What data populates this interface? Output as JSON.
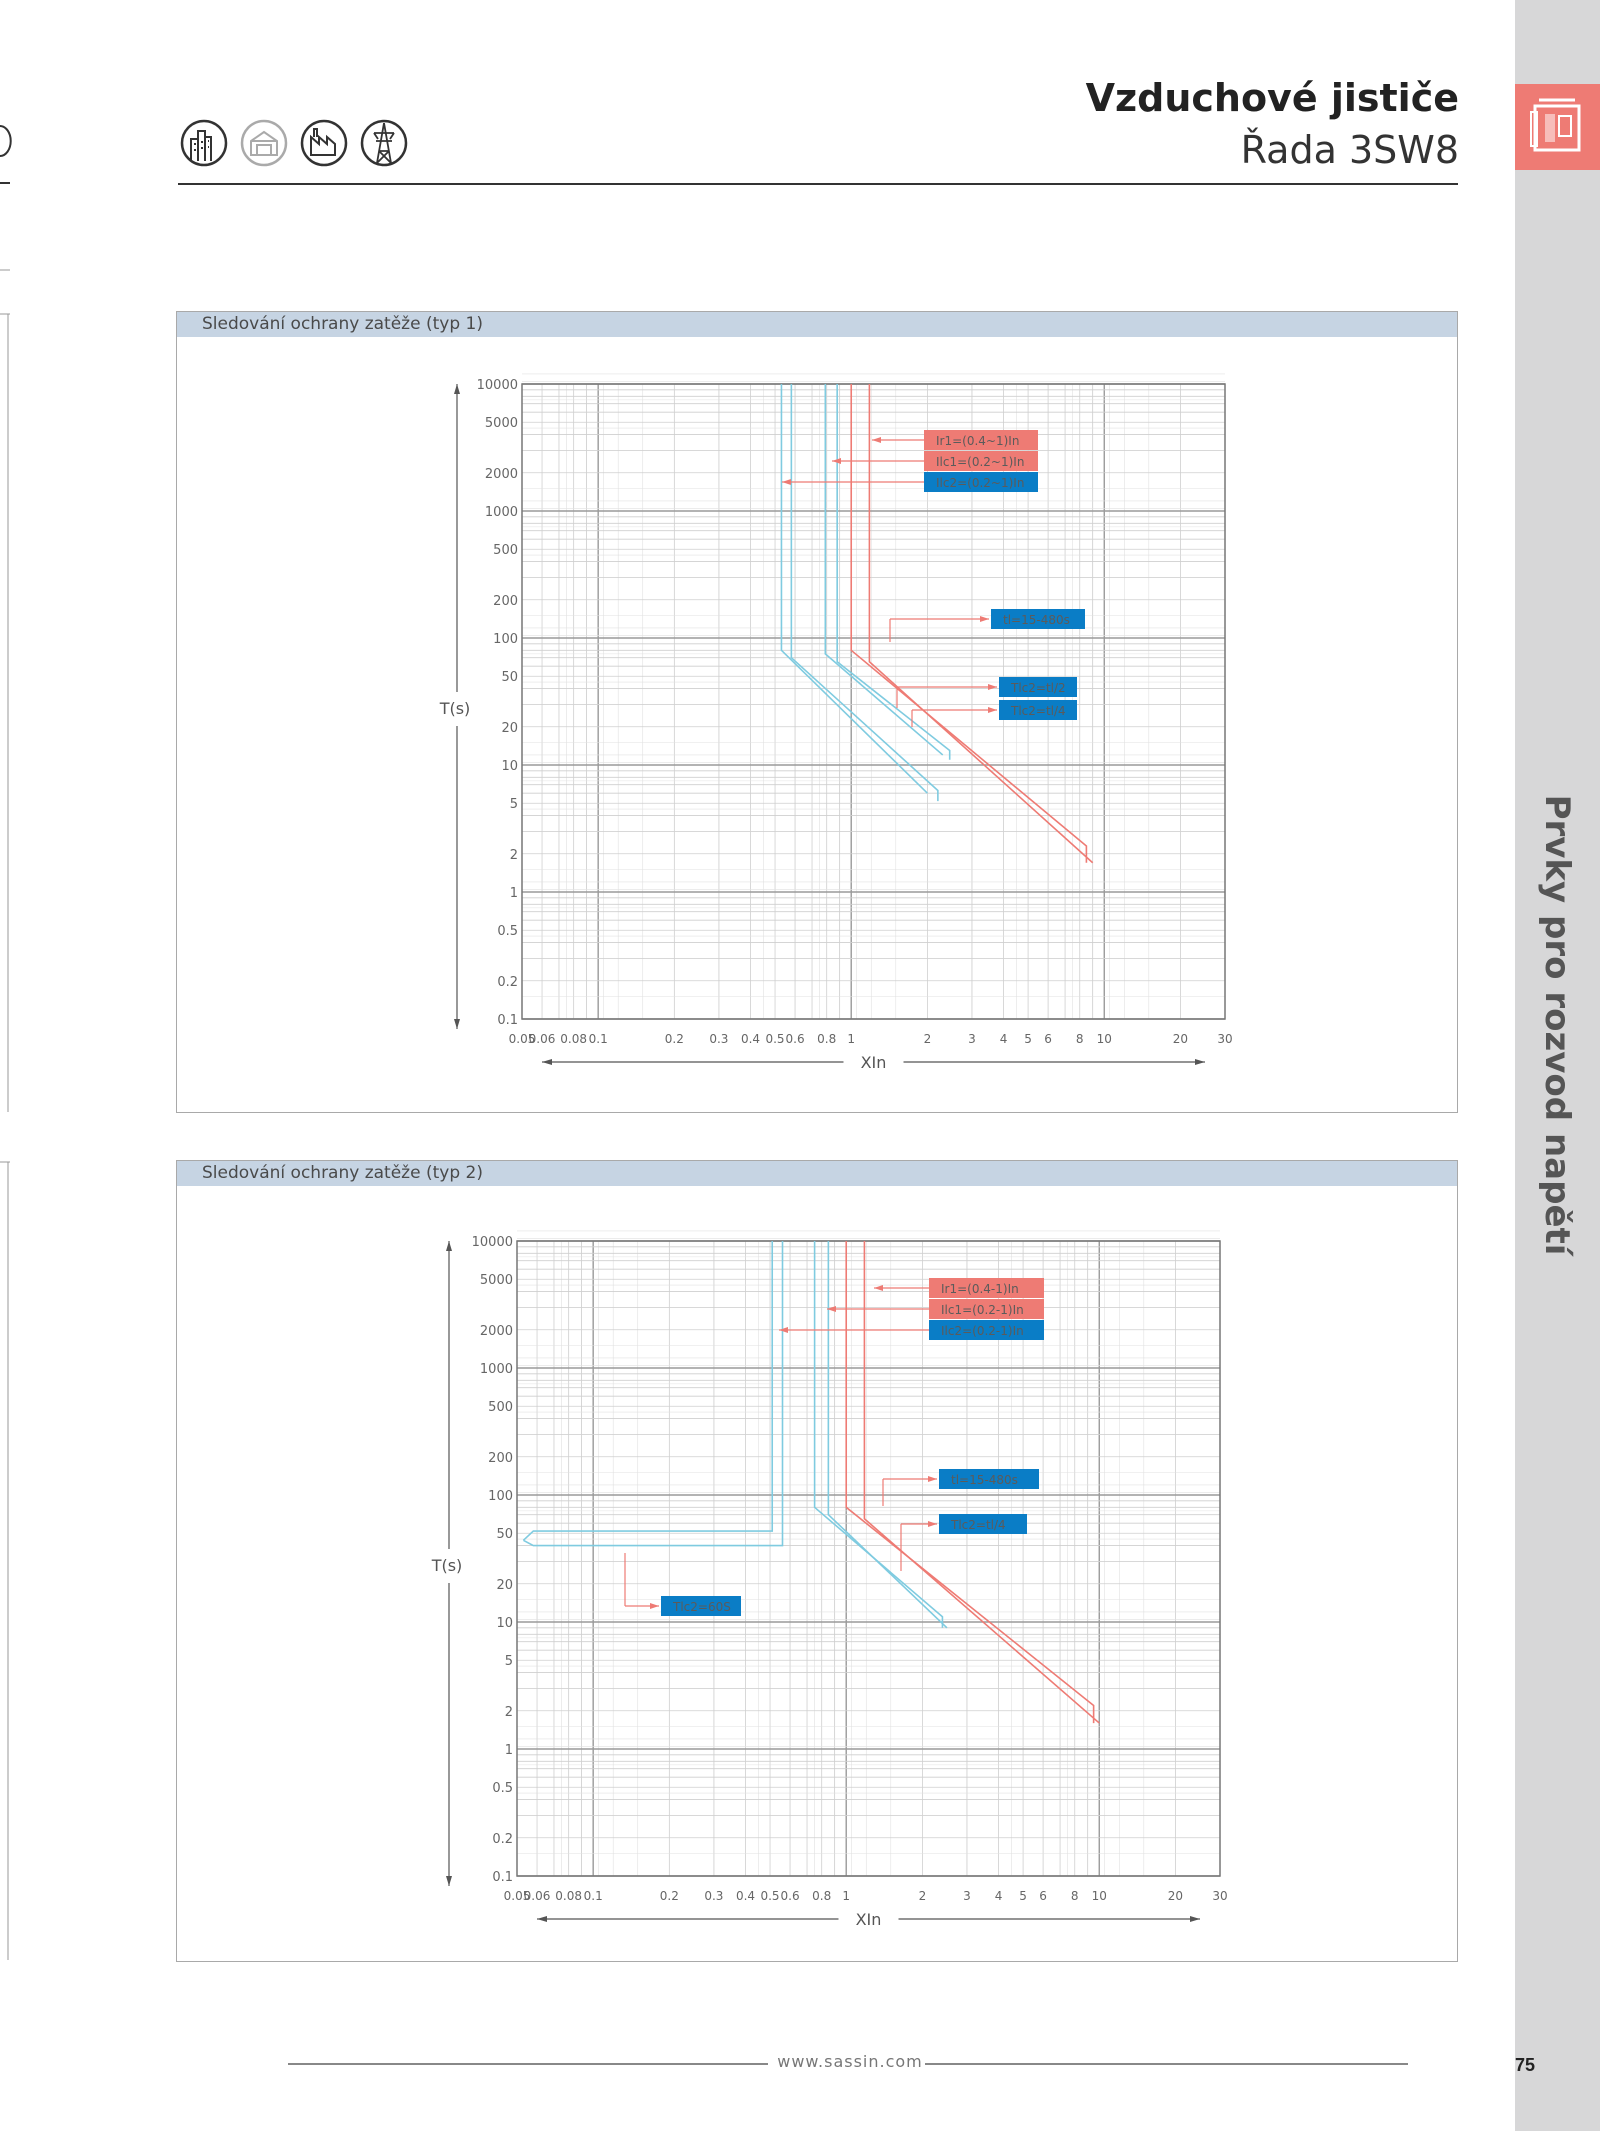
{
  "header": {
    "title": "Vzduchové jističe",
    "subtitle": "Řada 3SW8"
  },
  "header_icons": [
    "building-icon",
    "house-icon",
    "factory-icon",
    "tower-icon"
  ],
  "sidebar": {
    "title": "Prvky pro rozvod napětí",
    "tab_icon": "breaker-icon",
    "tab_color": "#ee7b74",
    "bg_color": "#d7d7d8"
  },
  "footer": {
    "url": "www.sassin.com",
    "page_number": "75"
  },
  "colors": {
    "red": "#ee7b74",
    "blue": "#0a7dc6",
    "light_blue": "#7fcbe0",
    "panel_header": "#c6d4e3"
  },
  "chart_data": [
    {
      "type": "line",
      "title": "Sledování ochrany zatěže (typ 1)",
      "xlabel": "XIn",
      "ylabel": "T(s)",
      "xscale": "log",
      "yscale": "log",
      "xlim": [
        0.05,
        30
      ],
      "ylim": [
        0.1,
        10000
      ],
      "x_ticks": [
        "0.05",
        "0.06",
        "0.08",
        "0.1",
        "0.2",
        "0.3",
        "0.4",
        "0.5",
        "0.6",
        "0.8",
        "1",
        "2",
        "3",
        "4",
        "5",
        "6",
        "8",
        "10",
        "20",
        "30"
      ],
      "y_ticks": [
        "10000",
        "5000",
        "2000",
        "1000",
        "500",
        "200",
        "100",
        "50",
        "20",
        "10",
        "5",
        "2",
        "1",
        "0.5",
        "0.2",
        "0.1"
      ],
      "grid": true,
      "series": [
        {
          "color": "#ee7b74",
          "x": [
            1,
            1,
            8.5,
            8.5
          ],
          "y": [
            10000,
            80,
            2.3,
            1.7
          ]
        },
        {
          "color": "#ee7b74",
          "x": [
            1.18,
            1.18,
            9.0
          ],
          "y": [
            10000,
            65,
            1.7
          ]
        },
        {
          "color": "#7fcbe0",
          "x": [
            0.79,
            0.79,
            2.3
          ],
          "y": [
            10000,
            75,
            12
          ]
        },
        {
          "color": "#7fcbe0",
          "x": [
            0.88,
            0.88,
            2.45,
            2.45
          ],
          "y": [
            10000,
            65,
            13,
            11
          ]
        },
        {
          "color": "#7fcbe0",
          "x": [
            0.53,
            0.53,
            2.0
          ],
          "y": [
            10000,
            80,
            6
          ]
        },
        {
          "color": "#7fcbe0",
          "x": [
            0.58,
            0.58,
            2.2,
            2.2
          ],
          "y": [
            10000,
            70,
            6.3,
            5.2
          ]
        }
      ],
      "annotations": [
        {
          "text": "Ir1=(0.4~1)In",
          "color": "#ee7b74"
        },
        {
          "text": "Ilc1=(0.2~1)In",
          "color": "#ee7b74"
        },
        {
          "text": "Ilc2=(0.2~1)In",
          "color": "#0a7dc6"
        },
        {
          "text": "tl=15-480s",
          "color": "#0a7dc6"
        },
        {
          "text": "Tlc2=tl/2",
          "color": "#0a7dc6"
        },
        {
          "text": "Tlc2=tl/4",
          "color": "#0a7dc6"
        }
      ]
    },
    {
      "type": "line",
      "title": "Sledování ochrany zatěže (typ 2)",
      "xlabel": "XIn",
      "ylabel": "T(s)",
      "xscale": "log",
      "yscale": "log",
      "xlim": [
        0.05,
        30
      ],
      "ylim": [
        0.1,
        10000
      ],
      "x_ticks": [
        "0.05",
        "0.06",
        "0.08",
        "0.1",
        "0.2",
        "0.3",
        "0.4",
        "0.5",
        "0.6",
        "0.8",
        "1",
        "2",
        "3",
        "4",
        "5",
        "6",
        "8",
        "10",
        "20",
        "30"
      ],
      "y_ticks": [
        "10000",
        "5000",
        "2000",
        "1000",
        "500",
        "200",
        "100",
        "50",
        "20",
        "10",
        "5",
        "2",
        "1",
        "0.5",
        "0.2",
        "0.1"
      ],
      "grid": true,
      "series": [
        {
          "color": "#ee7b74",
          "x": [
            1,
            1,
            9.5,
            9.5
          ],
          "y": [
            10000,
            80,
            2.2,
            1.6
          ]
        },
        {
          "color": "#ee7b74",
          "x": [
            1.18,
            1.18,
            10.0
          ],
          "y": [
            10000,
            65,
            1.6
          ]
        },
        {
          "color": "#7fcbe0",
          "x": [
            0.75,
            0.75,
            2.4,
            2.4
          ],
          "y": [
            10000,
            80,
            11,
            9
          ]
        },
        {
          "color": "#7fcbe0",
          "x": [
            0.85,
            0.85,
            2.5
          ],
          "y": [
            10000,
            70,
            9
          ]
        },
        {
          "color": "#7fcbe0",
          "x": [
            0.053,
            0.058,
            0.51,
            0.51
          ],
          "y": [
            44,
            52,
            52,
            10000
          ]
        },
        {
          "color": "#7fcbe0",
          "x": [
            0.053,
            0.058,
            0.56,
            0.56
          ],
          "y": [
            44,
            40,
            40,
            10000
          ]
        }
      ],
      "annotations": [
        {
          "text": "Ir1=(0.4-1)In",
          "color": "#ee7b74"
        },
        {
          "text": "Ilc1=(0.2-1)In",
          "color": "#ee7b74"
        },
        {
          "text": "Ilc2=(0.2-1)In",
          "color": "#0a7dc6"
        },
        {
          "text": "tl=15-480s",
          "color": "#0a7dc6"
        },
        {
          "text": "Tlc2=tl/4",
          "color": "#0a7dc6"
        },
        {
          "text": "Tlc2=60S",
          "color": "#0a7dc6"
        }
      ]
    }
  ]
}
